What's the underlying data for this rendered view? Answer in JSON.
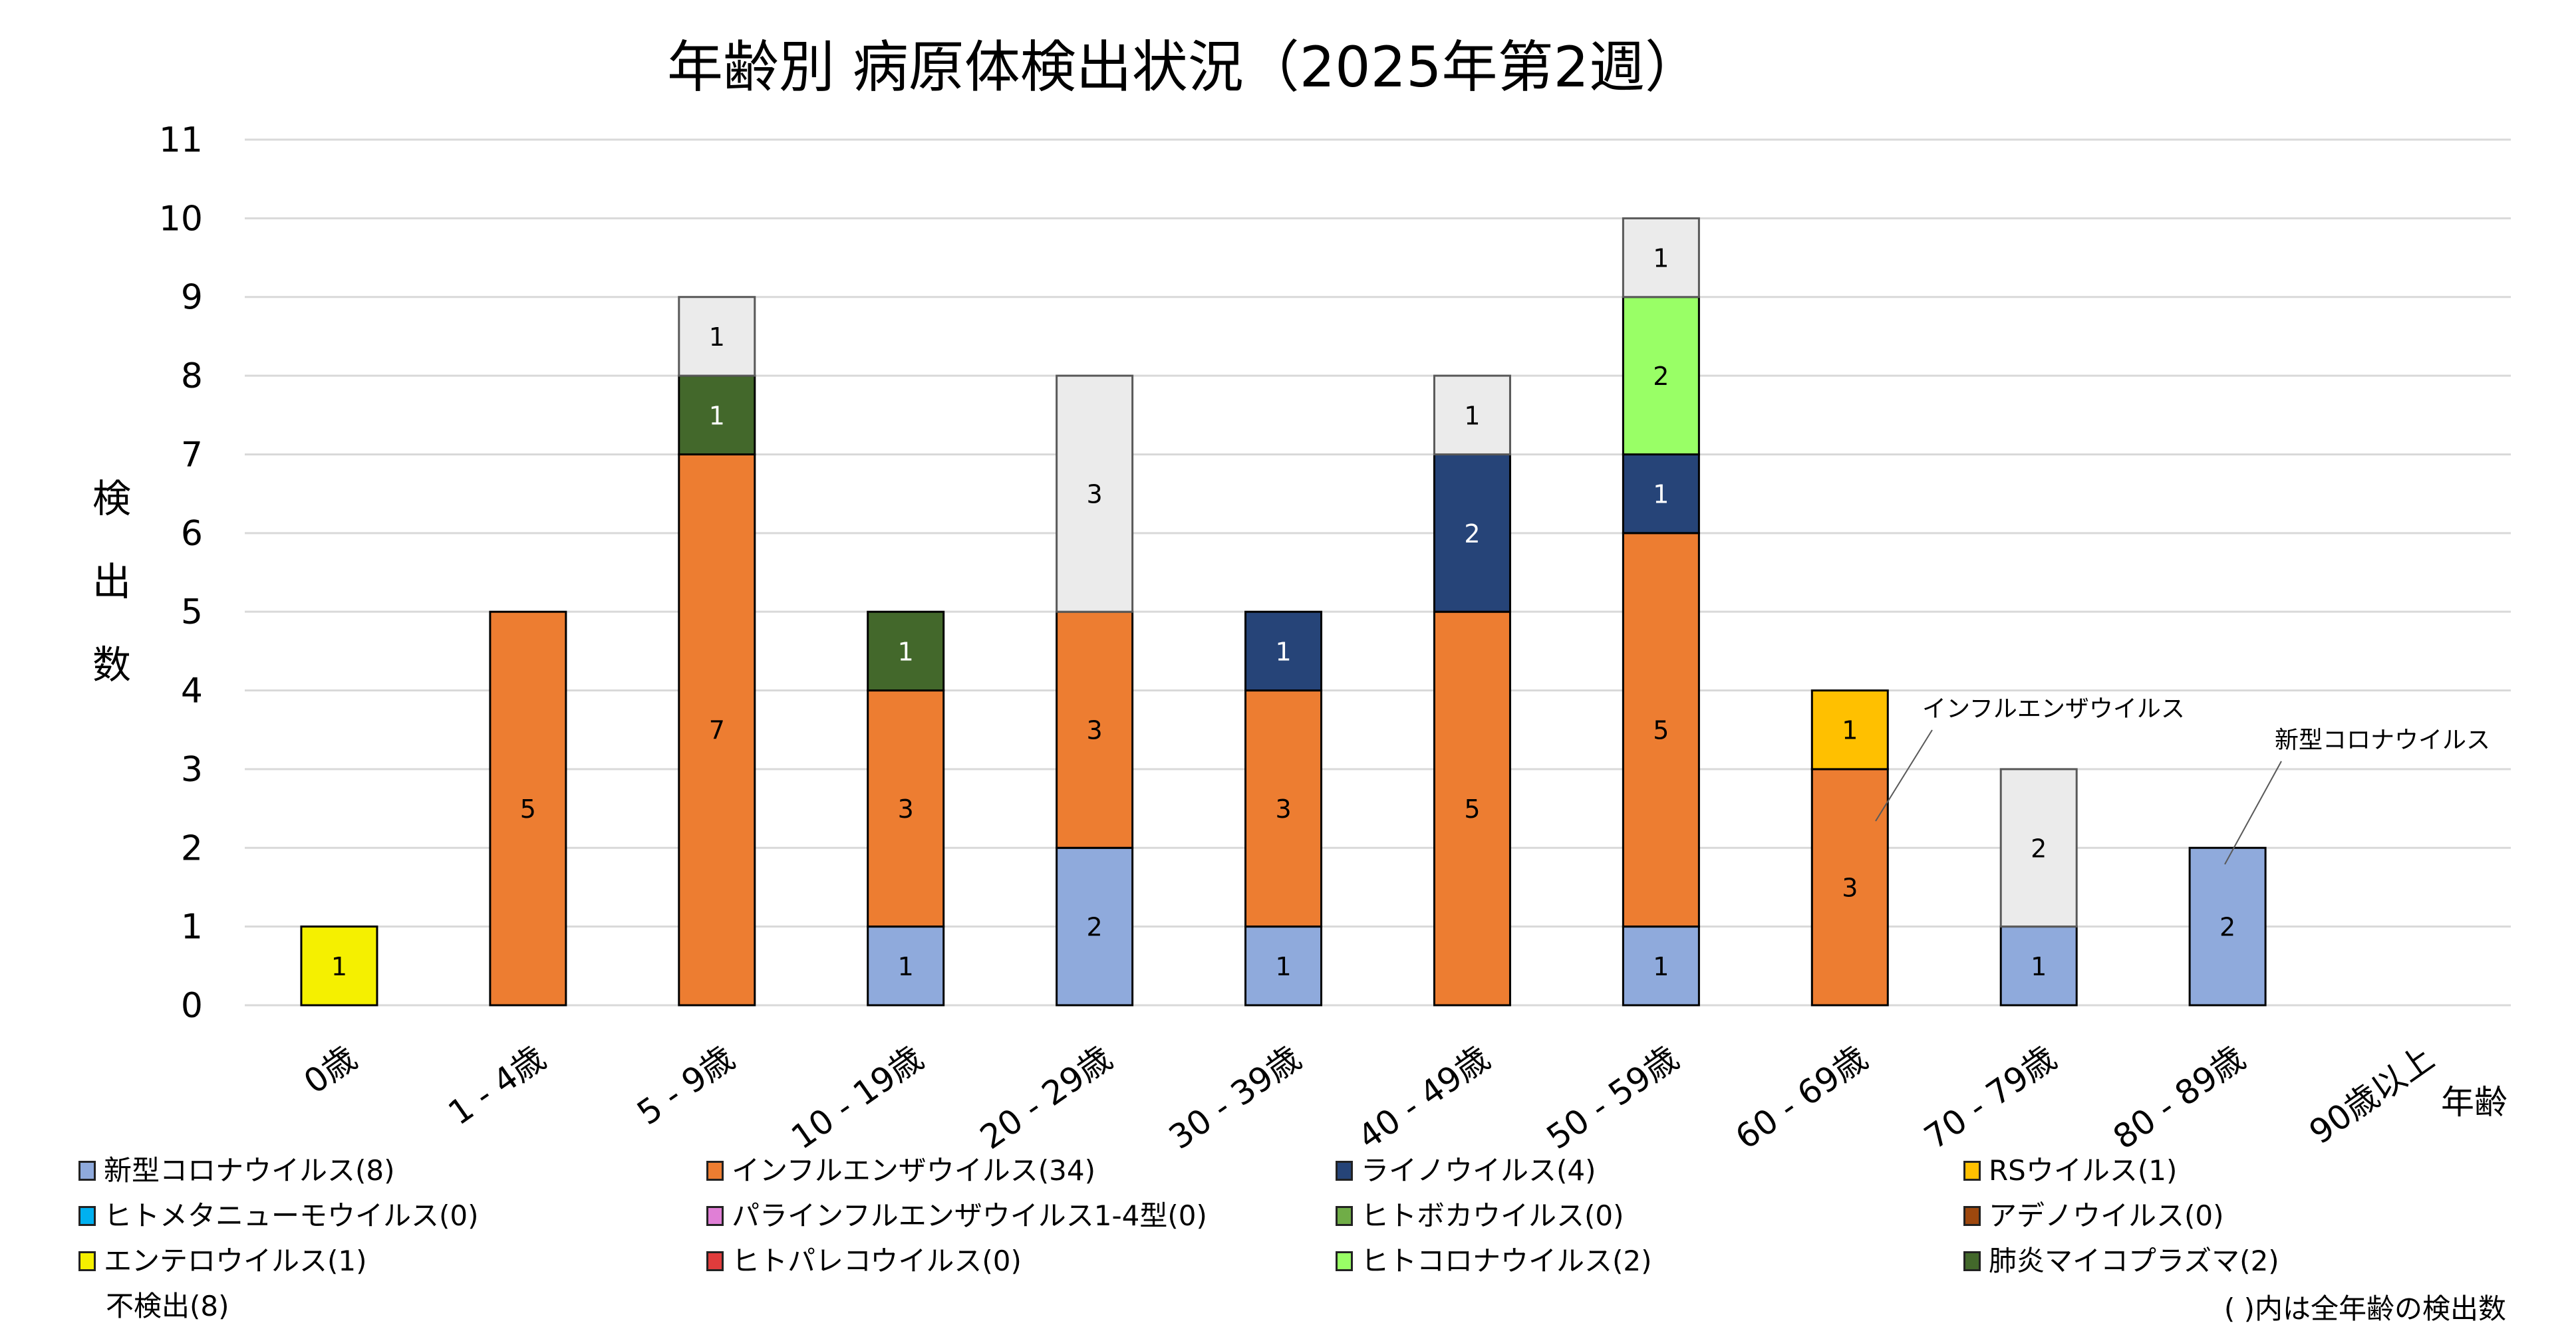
{
  "chart_data": {
    "type": "bar",
    "stacked": true,
    "title": "年齢別 病原体検出状況（2025年第2週）",
    "xlabel": "年齢",
    "ylabel": "検出数",
    "ylim": [
      0,
      11
    ],
    "yticks": [
      "0",
      "1",
      "2",
      "3",
      "4",
      "5",
      "6",
      "7",
      "8",
      "9",
      "10",
      "11"
    ],
    "grid": true,
    "legend_position": "bottom",
    "categories": [
      "0歳",
      "1 - 4歳",
      "5 - 9歳",
      "10 - 19歳",
      "20 - 29歳",
      "30 - 39歳",
      "40 - 49歳",
      "50 - 59歳",
      "60 - 69歳",
      "70 - 79歳",
      "80 - 89歳",
      "90歳以上"
    ],
    "series": [
      {
        "name": "新型コロナウイルス",
        "total": 8,
        "color": "#8FAADC",
        "label_color": "#000000",
        "values": [
          0,
          0,
          0,
          1,
          2,
          1,
          0,
          1,
          0,
          1,
          2,
          0
        ]
      },
      {
        "name": "インフルエンザウイルス",
        "total": 34,
        "color": "#ED7D31",
        "label_color": "#000000",
        "values": [
          0,
          5,
          7,
          3,
          3,
          3,
          5,
          5,
          3,
          0,
          0,
          0
        ]
      },
      {
        "name": "ライノウイルス",
        "total": 4,
        "color": "#264478",
        "label_color": "#FFFFFF",
        "values": [
          0,
          0,
          0,
          0,
          0,
          1,
          2,
          1,
          0,
          0,
          0,
          0
        ]
      },
      {
        "name": "RSウイルス",
        "total": 1,
        "color": "#FFC000",
        "label_color": "#000000",
        "values": [
          0,
          0,
          0,
          0,
          0,
          0,
          0,
          0,
          1,
          0,
          0,
          0
        ]
      },
      {
        "name": "ヒトメタニューモウイルス",
        "total": 0,
        "color": "#00B0F0",
        "label_color": "#000000",
        "values": [
          0,
          0,
          0,
          0,
          0,
          0,
          0,
          0,
          0,
          0,
          0,
          0
        ]
      },
      {
        "name": "パラインフルエンザウイルス1-4型",
        "total": 0,
        "color": "#E07FD6",
        "label_color": "#000000",
        "values": [
          0,
          0,
          0,
          0,
          0,
          0,
          0,
          0,
          0,
          0,
          0,
          0
        ]
      },
      {
        "name": "ヒトボカウイルス",
        "total": 0,
        "color": "#70AD47",
        "label_color": "#000000",
        "values": [
          0,
          0,
          0,
          0,
          0,
          0,
          0,
          0,
          0,
          0,
          0,
          0
        ]
      },
      {
        "name": "アデノウイルス",
        "total": 0,
        "color": "#9E480E",
        "label_color": "#000000",
        "values": [
          0,
          0,
          0,
          0,
          0,
          0,
          0,
          0,
          0,
          0,
          0,
          0
        ]
      },
      {
        "name": "エンテロウイルス",
        "total": 1,
        "color": "#F5F000",
        "label_color": "#000000",
        "values": [
          1,
          0,
          0,
          0,
          0,
          0,
          0,
          0,
          0,
          0,
          0,
          0
        ]
      },
      {
        "name": "ヒトパレコウイルス",
        "total": 0,
        "color": "#E03C3C",
        "label_color": "#000000",
        "values": [
          0,
          0,
          0,
          0,
          0,
          0,
          0,
          0,
          0,
          0,
          0,
          0
        ]
      },
      {
        "name": "ヒトコロナウイルス",
        "total": 2,
        "color": "#99FF66",
        "label_color": "#000000",
        "values": [
          0,
          0,
          0,
          0,
          0,
          0,
          0,
          2,
          0,
          0,
          0,
          0
        ]
      },
      {
        "name": "肺炎マイコプラズマ",
        "total": 2,
        "color": "#43682B",
        "label_color": "#FFFFFF",
        "values": [
          0,
          0,
          1,
          1,
          0,
          0,
          0,
          0,
          0,
          0,
          0,
          0
        ]
      },
      {
        "name": "不検出",
        "total": 8,
        "color": "#EBEBEB",
        "label_color": "#000000",
        "values": [
          0,
          0,
          1,
          0,
          3,
          0,
          1,
          1,
          0,
          2,
          0,
          0
        ]
      }
    ],
    "annotations": [
      {
        "text": "インフルエンザウイルス",
        "target_category": "60 - 69歳",
        "target_series": "インフルエンザウイルス"
      },
      {
        "text": "新型コロナウイルス",
        "target_category": "80 - 89歳",
        "target_series": "新型コロナウイルス"
      }
    ],
    "footnote": "( )内は全年齢の検出数"
  }
}
